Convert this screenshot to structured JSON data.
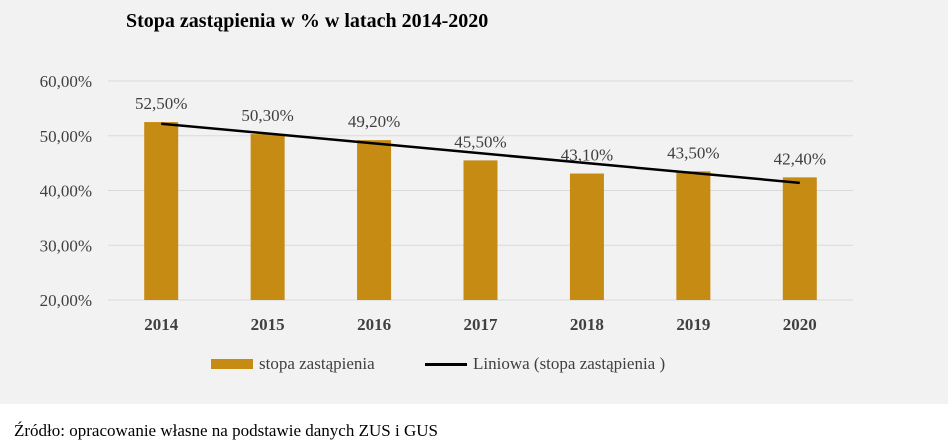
{
  "chart_data": {
    "type": "bar",
    "title": "Stopa zastąpienia w % w latach 2014-2020",
    "categories": [
      "2014",
      "2015",
      "2016",
      "2017",
      "2018",
      "2019",
      "2020"
    ],
    "series": [
      {
        "name": "stopa zastąpienia",
        "type": "bar",
        "color": "#c58b13",
        "values": [
          52.5,
          50.3,
          49.2,
          45.5,
          43.1,
          43.5,
          42.4
        ],
        "labels": [
          "52,50%",
          "50,30%",
          "49,20%",
          "45,50%",
          "43,10%",
          "43,50%",
          "42,40%"
        ]
      },
      {
        "name": "Liniowa (stopa zastąpienia )",
        "type": "line",
        "color": "#000000",
        "start": 52.2,
        "end": 41.4
      }
    ],
    "ylim": [
      20,
      60
    ],
    "yticks": [
      20,
      30,
      40,
      50,
      60
    ],
    "ytick_labels": [
      "20,00%",
      "30,00%",
      "40,00%",
      "50,00%",
      "60,00%"
    ],
    "grid": true,
    "legend_position": "bottom"
  },
  "source_note": "Źródło: opracowanie własne na podstawie danych ZUS i GUS"
}
